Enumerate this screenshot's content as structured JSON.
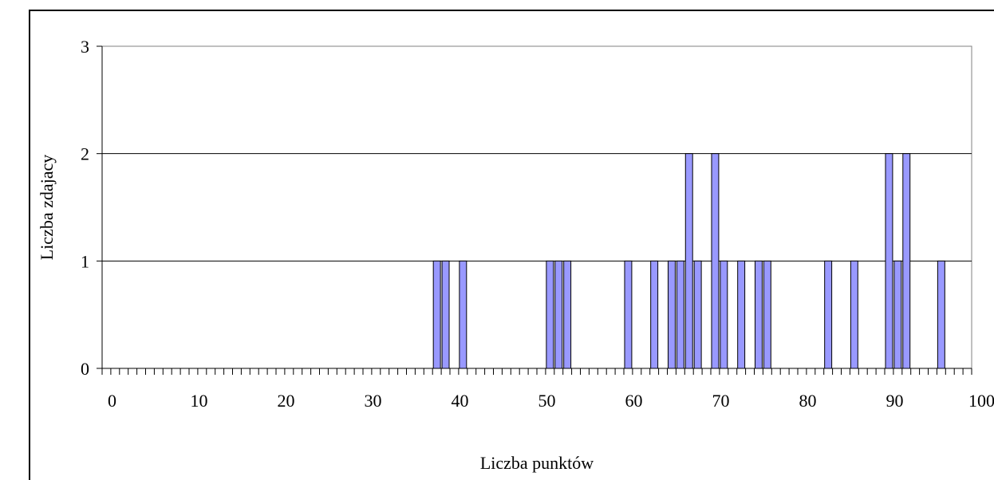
{
  "chart_data": {
    "type": "bar",
    "xlabel": "Liczba punktów",
    "ylabel": "Liczba zdajacy",
    "xlim": [
      0,
      100
    ],
    "ylim": [
      0,
      3
    ],
    "x_ticks": [
      0,
      10,
      20,
      30,
      40,
      50,
      60,
      70,
      80,
      90,
      100
    ],
    "y_ticks": [
      0,
      1,
      2,
      3
    ],
    "grid": "horizontal",
    "bar_color": "#9999ff",
    "bars": [
      {
        "x": 38,
        "y": 1
      },
      {
        "x": 39,
        "y": 1
      },
      {
        "x": 41,
        "y": 1
      },
      {
        "x": 51,
        "y": 1
      },
      {
        "x": 52,
        "y": 1
      },
      {
        "x": 53,
        "y": 1
      },
      {
        "x": 60,
        "y": 1
      },
      {
        "x": 63,
        "y": 1
      },
      {
        "x": 65,
        "y": 1
      },
      {
        "x": 66,
        "y": 1
      },
      {
        "x": 67,
        "y": 2
      },
      {
        "x": 68,
        "y": 1
      },
      {
        "x": 70,
        "y": 2
      },
      {
        "x": 71,
        "y": 1
      },
      {
        "x": 73,
        "y": 1
      },
      {
        "x": 75,
        "y": 1
      },
      {
        "x": 76,
        "y": 1
      },
      {
        "x": 83,
        "y": 1
      },
      {
        "x": 86,
        "y": 1
      },
      {
        "x": 90,
        "y": 2
      },
      {
        "x": 91,
        "y": 1
      },
      {
        "x": 92,
        "y": 2
      },
      {
        "x": 96,
        "y": 1
      }
    ]
  }
}
